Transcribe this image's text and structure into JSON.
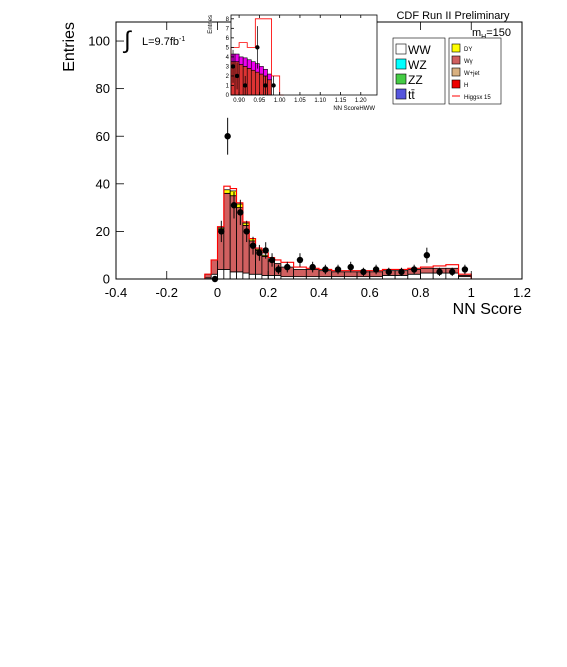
{
  "header": {
    "title": "CDF Run II Preliminary",
    "mass_label": "m",
    "mass_sub": "H",
    "mass_value": "=150"
  },
  "luminosity": {
    "integral_symbol": "∫",
    "label": "L=9.7fb",
    "sup": "-1"
  },
  "legend": {
    "left": [
      {
        "label": "WW",
        "color": "#ffffff"
      },
      {
        "label": "WZ",
        "color": "#00ffff"
      },
      {
        "label": "ZZ",
        "color": "#44cc44"
      },
      {
        "label": "tt̄",
        "color": "#5555dd"
      }
    ],
    "right": [
      {
        "label": "DY",
        "color": "#ffff00"
      },
      {
        "label": "Wγ",
        "color": "#d06060"
      },
      {
        "label": "W+jet",
        "color": "#d8b080"
      },
      {
        "label": "H",
        "color": "#ee0000"
      },
      {
        "label": "Higgsx 15",
        "color": "#ff0000",
        "style": "line"
      }
    ]
  },
  "chart_data": [
    {
      "type": "bar",
      "title": "",
      "xlabel": "NN Score",
      "ylabel": "Entries",
      "xlim": [
        -0.4,
        1.2
      ],
      "ylim": [
        0,
        108
      ],
      "xticks": [
        "-0.4",
        "-0.2",
        "0",
        "0.2",
        "0.4",
        "0.6",
        "0.8",
        "1",
        "1.2"
      ],
      "yticks": [
        "0",
        "20",
        "40",
        "60",
        "80",
        "100"
      ],
      "bin_edges": [
        -0.05,
        -0.025,
        0.0,
        0.025,
        0.05,
        0.075,
        0.1,
        0.125,
        0.15,
        0.175,
        0.2,
        0.225,
        0.25,
        0.3,
        0.35,
        0.4,
        0.45,
        0.5,
        0.55,
        0.6,
        0.65,
        0.7,
        0.75,
        0.8,
        0.85,
        0.9,
        0.95,
        1.0
      ],
      "series": [
        {
          "name": "WW",
          "values": [
            0.5,
            2,
            4,
            4,
            3,
            3,
            2.5,
            2,
            2,
            1.5,
            1.5,
            1.5,
            1,
            1,
            1,
            1,
            1,
            1,
            1,
            1,
            1.5,
            1.5,
            2,
            2.5,
            2.5,
            2.5,
            1
          ]
        },
        {
          "name": "Wγ",
          "values": [
            1.5,
            6,
            17,
            32,
            32,
            27,
            20,
            14,
            10,
            8,
            6,
            5,
            4,
            3,
            3,
            2.5,
            2,
            2,
            2,
            2,
            2,
            2,
            2,
            2,
            2,
            2,
            0.5
          ]
        },
        {
          "name": "DY",
          "values": [
            0,
            0,
            0.5,
            1.5,
            2,
            1.5,
            1,
            1,
            0.5,
            0.5,
            0.5,
            0,
            0,
            0,
            0,
            0,
            0,
            0,
            0,
            0,
            0,
            0,
            0,
            0,
            0,
            0,
            0
          ]
        },
        {
          "name": "Higgsx 15",
          "values": [
            2,
            8,
            22,
            39,
            38,
            32,
            24,
            17,
            13,
            11,
            9,
            8,
            7,
            5,
            4.5,
            4,
            3.5,
            3.5,
            3.5,
            3.5,
            4,
            4,
            4.5,
            5,
            5.5,
            6,
            2
          ]
        }
      ],
      "data_points": {
        "x": [
          -0.01,
          0.015,
          0.04,
          0.065,
          0.09,
          0.115,
          0.14,
          0.165,
          0.19,
          0.215,
          0.24,
          0.275,
          0.325,
          0.375,
          0.425,
          0.475,
          0.525,
          0.575,
          0.625,
          0.675,
          0.725,
          0.775,
          0.825,
          0.875,
          0.925,
          0.975
        ],
        "y": [
          0,
          20,
          60,
          31,
          28,
          20,
          14,
          11,
          12,
          8,
          4,
          5,
          8,
          5,
          4,
          4,
          5,
          3,
          4,
          3,
          3,
          4,
          10,
          3,
          3,
          4
        ]
      }
    },
    {
      "type": "bar",
      "title": "",
      "xlabel": "NN ScoreHWW",
      "ylabel": "Entries",
      "xlim": [
        0.88,
        1.24
      ],
      "ylim": [
        0,
        8.4
      ],
      "xticks": [
        "0.90",
        "0.95",
        "1.00",
        "1.05",
        "1.10",
        "1.15",
        "1.20"
      ],
      "yticks": [
        "0",
        "1",
        "2",
        "3",
        "4",
        "5",
        "6",
        "7",
        "8"
      ],
      "bin_edges": [
        0.88,
        0.89,
        0.9,
        0.91,
        0.92,
        0.93,
        0.94,
        0.95,
        0.96,
        0.97,
        0.98,
        0.99,
        1.0,
        1.01
      ],
      "series": [
        {
          "name": "WW",
          "values": [
            3.5,
            3.5,
            3.2,
            3,
            2.8,
            2.6,
            2.4,
            2.2,
            2,
            1.6,
            0,
            0,
            0
          ]
        },
        {
          "name": "H",
          "values": [
            0.8,
            0.8,
            0.8,
            0.9,
            0.9,
            0.9,
            0.9,
            0.8,
            0.7,
            0.6,
            0,
            0,
            0
          ]
        },
        {
          "name": "Higgsx 15",
          "values": [
            5,
            5,
            5.5,
            5.5,
            5,
            5,
            8,
            8,
            8,
            8,
            2,
            2,
            0
          ]
        }
      ],
      "data_points": {
        "x": [
          0.885,
          0.895,
          0.915,
          0.945,
          0.965,
          0.985
        ],
        "y": [
          3,
          2,
          1,
          5,
          1,
          1
        ]
      }
    }
  ]
}
